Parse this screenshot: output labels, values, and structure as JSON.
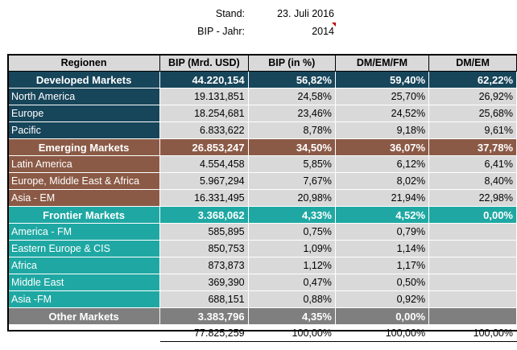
{
  "meta": {
    "stand_label": "Stand:",
    "stand_value": "23. Juli 2016",
    "year_label": "BIP - Jahr:",
    "year_value": "2014"
  },
  "table": {
    "headers": [
      "Regionen",
      "BIP (Mrd. USD)",
      "BIP (in %)",
      "DM/EM/FM",
      "DM/EM"
    ],
    "developed": {
      "name": "Developed Markets",
      "values": [
        "44.220,154",
        "56,82%",
        "59,40%",
        "62,22%"
      ],
      "rows": [
        {
          "name": "North America",
          "values": [
            "19.131,851",
            "24,58%",
            "25,70%",
            "26,92%"
          ]
        },
        {
          "name": "Europe",
          "values": [
            "18.254,681",
            "23,46%",
            "24,52%",
            "25,68%"
          ]
        },
        {
          "name": "Pacific",
          "values": [
            "6.833,622",
            "8,78%",
            "9,18%",
            "9,61%"
          ]
        }
      ]
    },
    "emerging": {
      "name": "Emerging Markets",
      "values": [
        "26.853,247",
        "34,50%",
        "36,07%",
        "37,78%"
      ],
      "rows": [
        {
          "name": "Latin America",
          "values": [
            "4.554,458",
            "5,85%",
            "6,12%",
            "6,41%"
          ]
        },
        {
          "name": "Europe, Middle East & Africa",
          "values": [
            "5.967,294",
            "7,67%",
            "8,02%",
            "8,40%"
          ]
        },
        {
          "name": "Asia - EM",
          "values": [
            "16.331,495",
            "20,98%",
            "21,94%",
            "22,98%"
          ]
        }
      ]
    },
    "frontier": {
      "name": "Frontier Markets",
      "values": [
        "3.368,062",
        "4,33%",
        "4,52%",
        "0,00%"
      ],
      "rows": [
        {
          "name": "America - FM",
          "values": [
            "585,895",
            "0,75%",
            "0,79%",
            ""
          ]
        },
        {
          "name": "Eastern Europe & CIS",
          "values": [
            "850,753",
            "1,09%",
            "1,14%",
            ""
          ]
        },
        {
          "name": "Africa",
          "values": [
            "873,873",
            "1,12%",
            "1,17%",
            ""
          ]
        },
        {
          "name": "Middle East",
          "values": [
            "369,390",
            "0,47%",
            "0,50%",
            ""
          ]
        },
        {
          "name": "Asia -FM",
          "values": [
            "688,151",
            "0,88%",
            "0,92%",
            ""
          ]
        }
      ]
    },
    "other": {
      "name": "Other Markets",
      "values": [
        "3.383,796",
        "4,35%",
        "0,00%",
        ""
      ]
    },
    "total": {
      "values": [
        "77.825,259",
        "100,00%",
        "100,00%",
        "100,00%"
      ]
    }
  },
  "colors": {
    "developed": "#17455a",
    "emerging": "#8b5a46",
    "frontier": "#1fa8a3",
    "other": "#7f7f7f",
    "cell_grey": "#d9d9d9",
    "comment_marker": "#c00000"
  }
}
